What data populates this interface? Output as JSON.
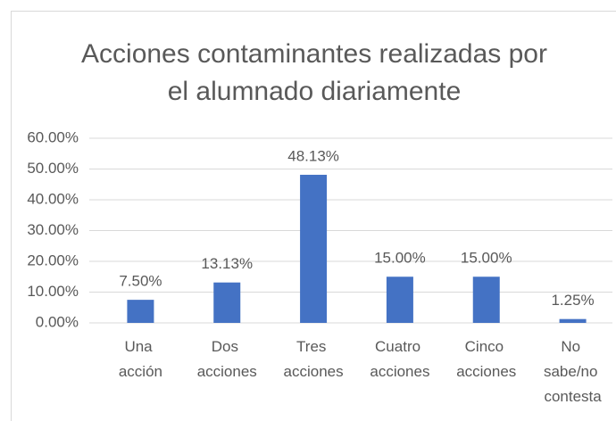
{
  "chart_data": {
    "type": "bar",
    "title": "Acciones contaminantes realizadas por el alumnado diariamente",
    "categories": [
      "Una acción",
      "Dos acciones",
      "Tres acciones",
      "Cuatro acciones",
      "Cinco acciones",
      "No sabe/no contesta"
    ],
    "values": [
      7.5,
      13.13,
      48.13,
      15,
      15,
      1.25
    ],
    "value_labels": [
      "7.50%",
      "13.13%",
      "48.13%",
      "15.00%",
      "15.00%",
      "1.25%"
    ],
    "color": "#4472c4",
    "ylim": [
      0,
      60
    ],
    "yticks": [
      {
        "value": 0,
        "label": "0.00%"
      },
      {
        "value": 10,
        "label": "10.00%"
      },
      {
        "value": 20,
        "label": "20.00%"
      },
      {
        "value": 30,
        "label": "30.00%"
      },
      {
        "value": 40,
        "label": "40.00%"
      },
      {
        "value": 50,
        "label": "50.00%"
      },
      {
        "value": 60,
        "label": "60.00%"
      }
    ],
    "grid": true
  }
}
